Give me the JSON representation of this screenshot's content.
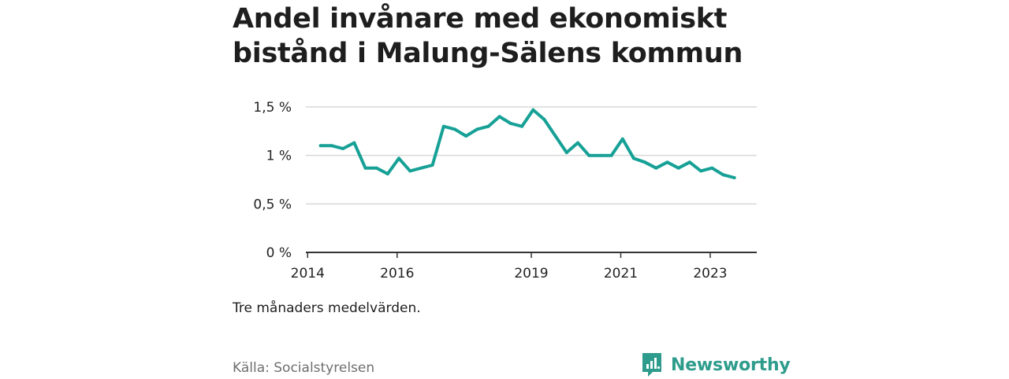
{
  "title": "Andel invånare med ekonomiskt bistånd i Malung-Sälens kommun",
  "note": "Tre månaders medelvärden.",
  "source": "Källa: Socialstyrelsen",
  "brand": {
    "name": "Newsworthy",
    "icon": "newsworthy-logo-icon"
  },
  "colors": {
    "line": "#17a196",
    "grid": "#d9d9d9",
    "axis": "#333333",
    "brand": "#2e9c8c"
  },
  "chart_data": {
    "type": "line",
    "title": "Andel invånare med ekonomiskt bistånd i Malung-Sälens kommun",
    "xlabel": "",
    "ylabel": "",
    "grid": true,
    "ylim": [
      0,
      1.5
    ],
    "y_ticks": [
      {
        "value": 0,
        "label": "0 %"
      },
      {
        "value": 0.5,
        "label": "0,5 %"
      },
      {
        "value": 1,
        "label": "1 %"
      },
      {
        "value": 1.5,
        "label": "1,5 %"
      }
    ],
    "x_ticks": [
      {
        "value": 2014.0,
        "label": "2014"
      },
      {
        "value": 2016.0,
        "label": "2016"
      },
      {
        "value": 2019.0,
        "label": "2019"
      },
      {
        "value": 2021.0,
        "label": "2021"
      },
      {
        "value": 2023.0,
        "label": "2023"
      }
    ],
    "xlim": [
      2013.96,
      2024.04
    ],
    "series": [
      {
        "points": [
          [
            2014.29,
            1.1
          ],
          [
            2014.54,
            1.1
          ],
          [
            2014.79,
            1.07
          ],
          [
            2015.04,
            1.13
          ],
          [
            2015.29,
            0.87
          ],
          [
            2015.54,
            0.87
          ],
          [
            2015.79,
            0.81
          ],
          [
            2016.04,
            0.97
          ],
          [
            2016.29,
            0.84
          ],
          [
            2016.54,
            0.87
          ],
          [
            2016.79,
            0.9
          ],
          [
            2017.04,
            1.3
          ],
          [
            2017.29,
            1.27
          ],
          [
            2017.54,
            1.2
          ],
          [
            2017.79,
            1.27
          ],
          [
            2018.04,
            1.3
          ],
          [
            2018.29,
            1.4
          ],
          [
            2018.54,
            1.33
          ],
          [
            2018.79,
            1.3
          ],
          [
            2019.04,
            1.47
          ],
          [
            2019.29,
            1.37
          ],
          [
            2019.54,
            1.2
          ],
          [
            2019.79,
            1.03
          ],
          [
            2020.04,
            1.13
          ],
          [
            2020.29,
            1.0
          ],
          [
            2020.54,
            1.0
          ],
          [
            2020.79,
            1.0
          ],
          [
            2021.04,
            1.17
          ],
          [
            2021.29,
            0.97
          ],
          [
            2021.54,
            0.93
          ],
          [
            2021.79,
            0.87
          ],
          [
            2022.04,
            0.93
          ],
          [
            2022.29,
            0.87
          ],
          [
            2022.54,
            0.93
          ],
          [
            2022.79,
            0.84
          ],
          [
            2023.04,
            0.87
          ],
          [
            2023.29,
            0.8
          ],
          [
            2023.54,
            0.77
          ]
        ]
      }
    ]
  }
}
